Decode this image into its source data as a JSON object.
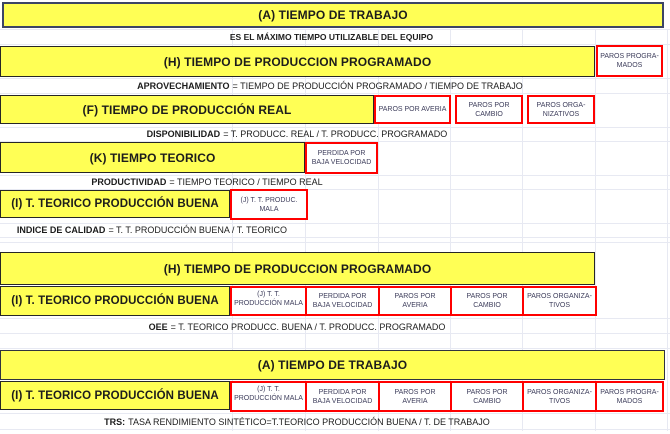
{
  "colors": {
    "bar_fill": "#ffff55",
    "bar_border": "#262626",
    "top_bar_border": "#3c4565",
    "loss_border": "#ff0000",
    "loss_text": "#3e3e5c",
    "gridline": "#e7e9f2"
  },
  "section1": {
    "tiempo_trabajo": "(A) TIEMPO DE TRABAJO",
    "trabajo_note": "ES EL MÁXIMO TIEMPO UTILIZABLE DEL EQUIPO",
    "produccion_programado": "(H) TIEMPO DE PRODUCCION PROGRAMADO",
    "paros_programados": "PAROS PROGRA-MADOS",
    "aprovechamiento": {
      "term": "APROVECHAMIENTO",
      "formula": "= TIEMPO DE PRODUCCIÓN PROGRAMADO / TIEMPO DE TRABAJO"
    },
    "produccion_real": "(F) TIEMPO DE PRODUCCIÓN REAL",
    "paros_averia": "PAROS POR AVERIA",
    "paros_cambio": "PAROS POR CAMBIO",
    "paros_organizativos": "PAROS ORGA-NIZATIVOS",
    "disponibilidad": {
      "term": "DISPONIBILIDAD",
      "formula": "= T. PRODUCC. REAL / T. PRODUCC. PROGRAMADO"
    },
    "tiempo_teorico": "(K) TIEMPO TEORICO",
    "perdida_velocidad": "PERDIDA POR BAJA VELOCIDAD",
    "productividad": {
      "term": "PRODUCTIVIDAD",
      "formula": "= TIEMPO TEORICO / TIEMPO REAL"
    },
    "teorico_buena": "(I) T. TEORICO PRODUCCIÓN BUENA",
    "produc_mala": "(J) T. T. PRODUC. MALA",
    "indice_calidad": {
      "term": "INDICE DE CALIDAD",
      "formula": "= T. T. PRODUCCIÓN BUENA / T. TEORICO"
    }
  },
  "section2": {
    "produccion_programado": "(H) TIEMPO DE PRODUCCION PROGRAMADO",
    "teorico_buena": "(I) T. TEORICO PRODUCCIÓN BUENA",
    "boxes": [
      "(J) T. T. PRODUCCIÓN MALA",
      "PERDIDA POR BAJA VELOCIDAD",
      "PAROS POR AVERIA",
      "PAROS POR CAMBIO",
      "PAROS ORGANIZA-TIVOS"
    ],
    "oee": {
      "term": "OEE",
      "formula": "= T. TEORICO PRODUCC. BUENA / T. PRODUCC. PROGRAMADO"
    }
  },
  "section3": {
    "tiempo_trabajo": "(A) TIEMPO DE TRABAJO",
    "teorico_buena": "(I) T. TEORICO PRODUCCIÓN BUENA",
    "boxes": [
      "(J) T. T. PRODUCCIÓN MALA",
      "PERDIDA POR BAJA VELOCIDAD",
      "PAROS POR AVERIA",
      "PAROS POR CAMBIO",
      "PAROS ORGANIZA-TIVOS",
      "PAROS PROGRA-MADOS"
    ],
    "trs": {
      "term": "TRS:",
      "formula": "TASA RENDIMIENTO SINTÉTICO=T.TEORICO PRODUCCIÓN BUENA / T. DE TRABAJO"
    }
  }
}
